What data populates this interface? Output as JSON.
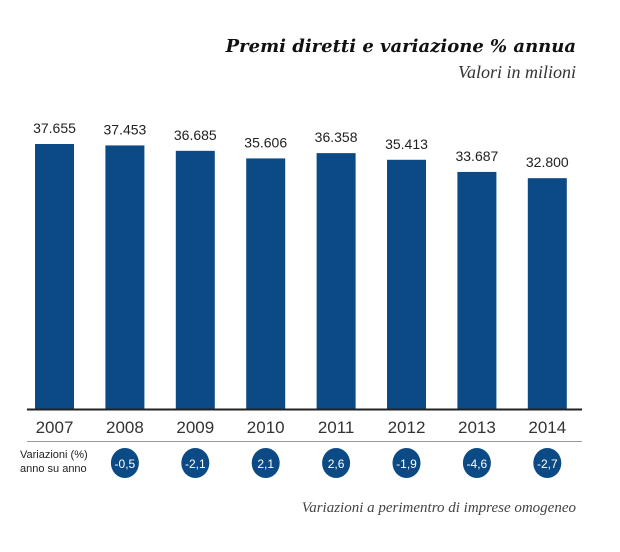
{
  "chart_data": {
    "type": "bar",
    "title": "Premi diretti e variazione % annua",
    "subtitle": "Valori in milioni",
    "categories": [
      "2007",
      "2008",
      "2009",
      "2010",
      "2011",
      "2012",
      "2013",
      "2014"
    ],
    "values": [
      37655,
      37453,
      36685,
      35606,
      36358,
      35413,
      33687,
      32800
    ],
    "value_labels": [
      "37.655",
      "37.453",
      "36.685",
      "35.606",
      "36.358",
      "35.413",
      "33.687",
      "32.800"
    ],
    "ylim": [
      0,
      38000
    ],
    "grid": false,
    "bar_color": "#0b4a84",
    "variations_label": [
      "Variazioni (%)",
      "anno su anno"
    ],
    "variations": [
      null,
      "-0,5",
      "-2,1",
      "2,1",
      "2,6",
      "-1,9",
      "-4,6",
      "-2,7"
    ],
    "note": "Variazioni a perimentro di imprese omogeneo"
  }
}
